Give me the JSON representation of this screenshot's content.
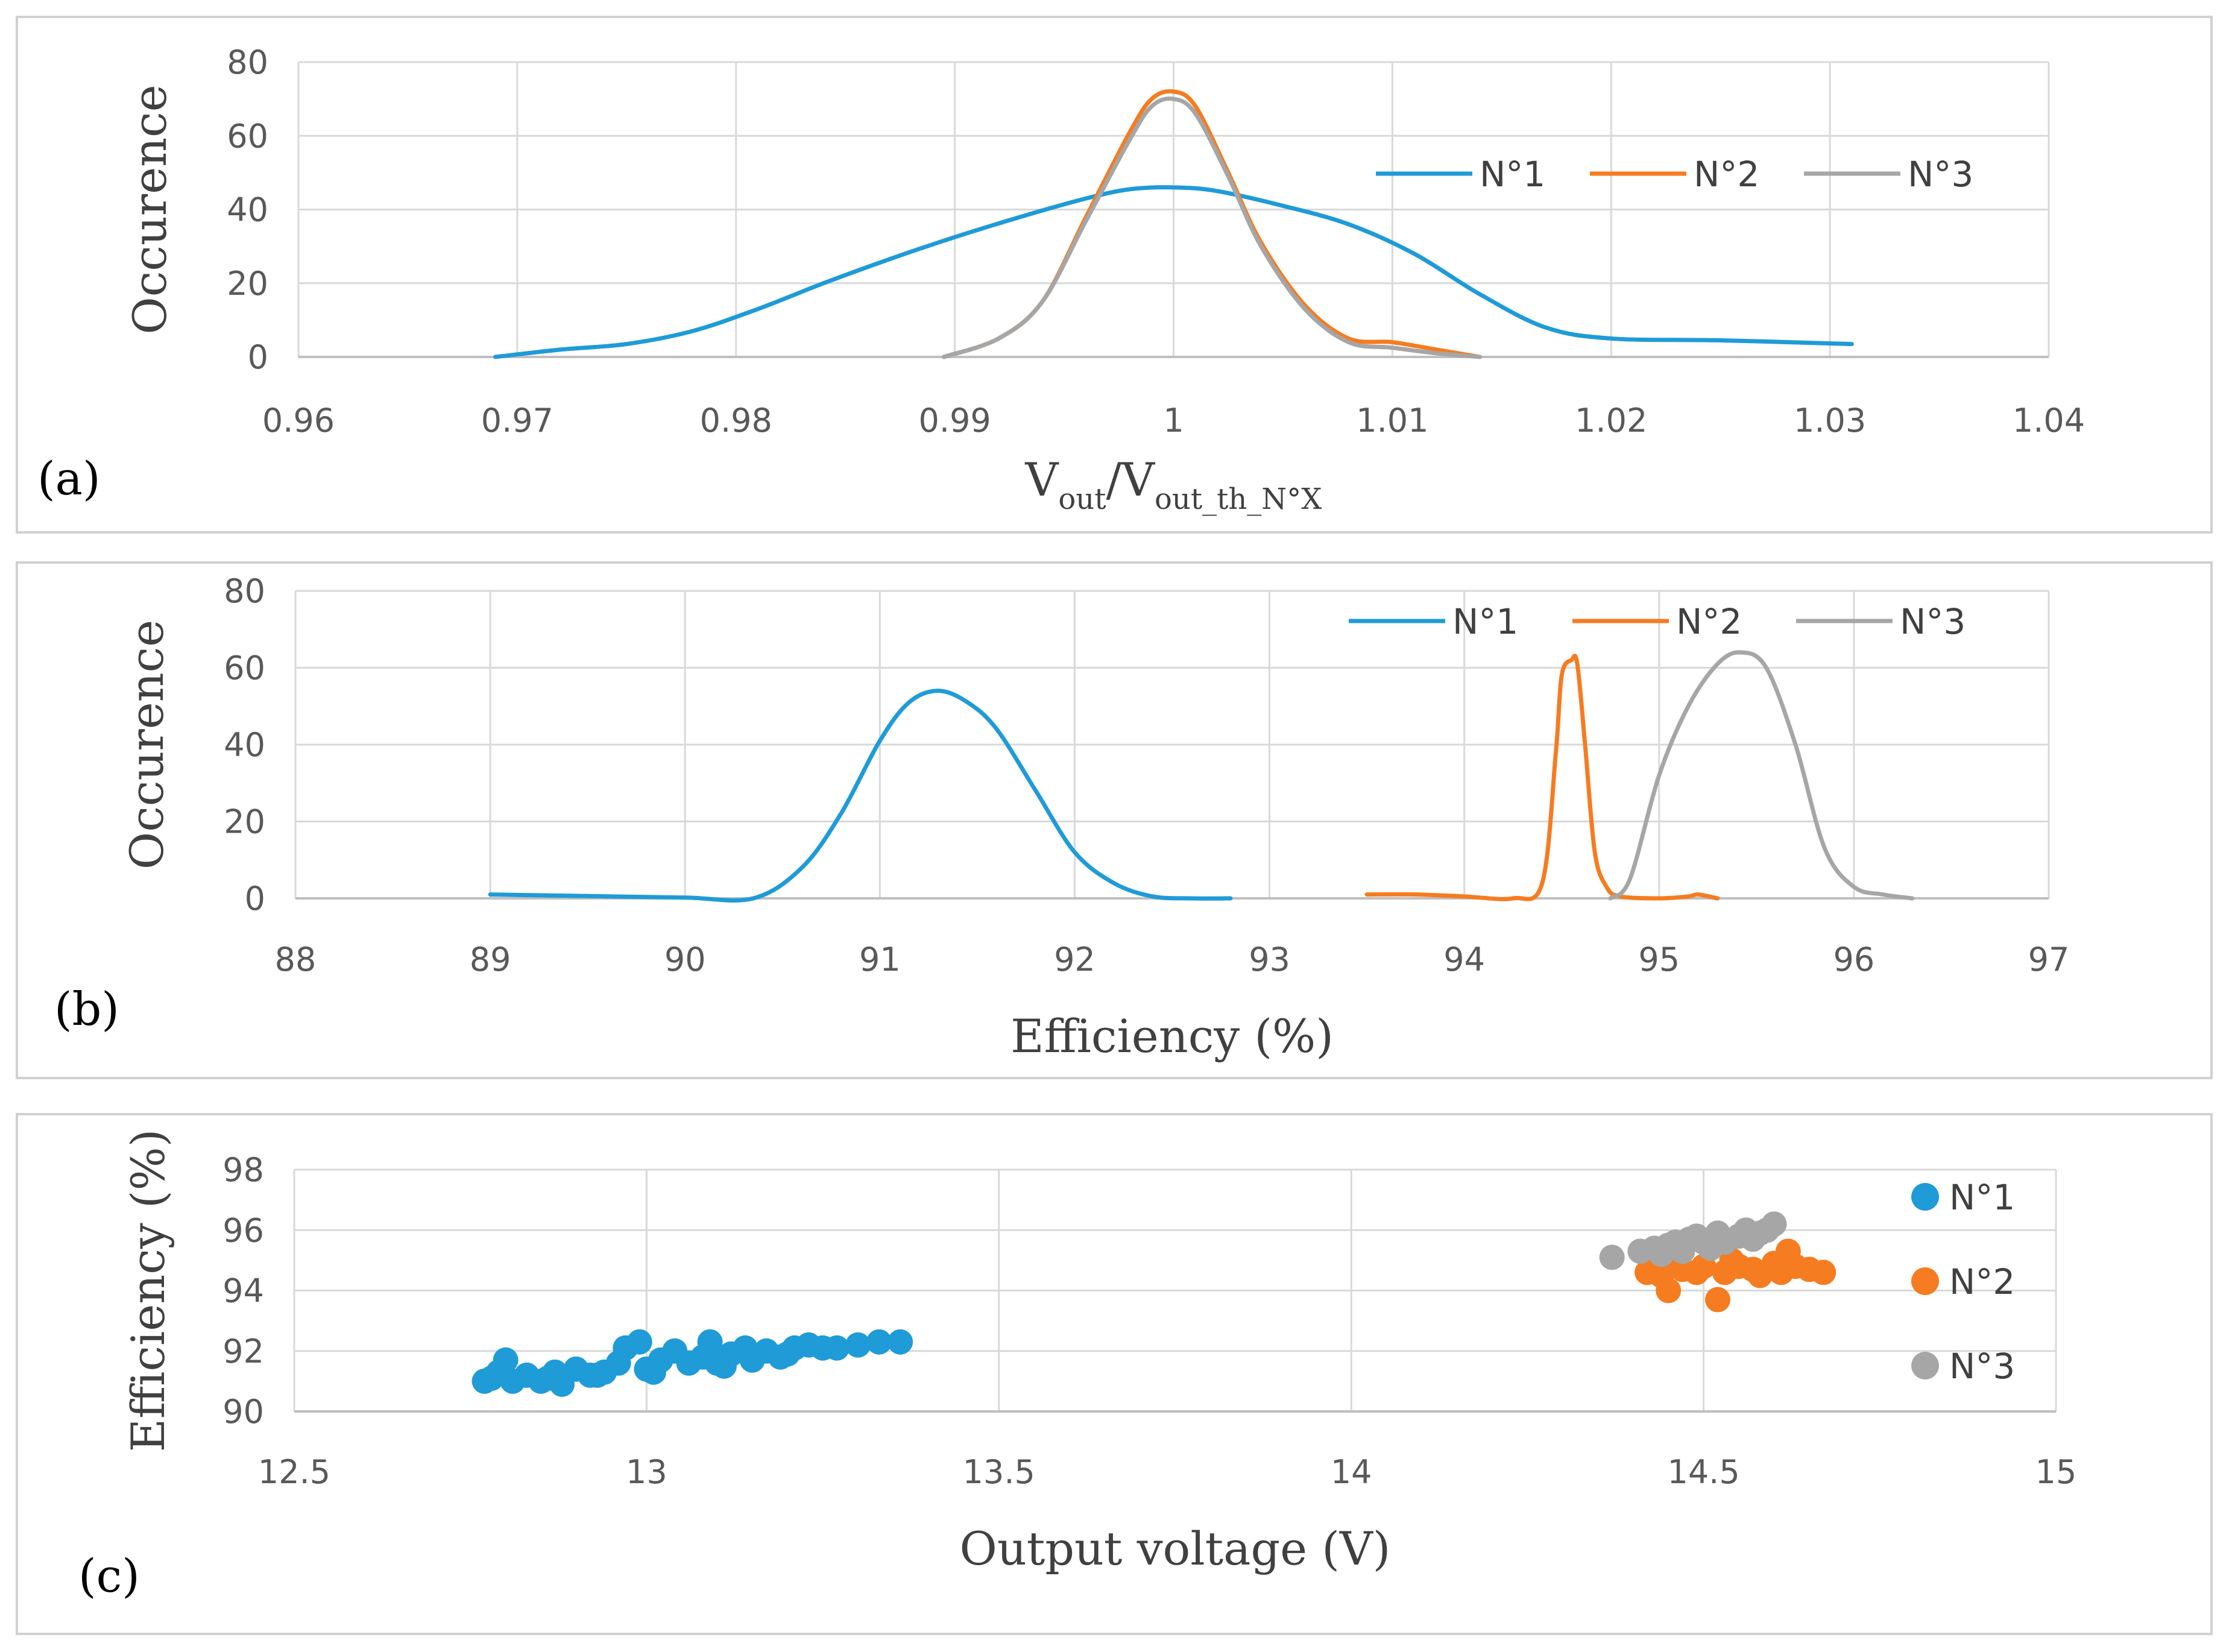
{
  "colors": {
    "n1": "#1f9bd7",
    "n2": "#f57c20",
    "n3": "#a6a6a6",
    "grid": "#d9d9d9",
    "frame": "#d0d0d0"
  },
  "chart_data": [
    {
      "id": "a",
      "type": "line",
      "panel_label": "(a)",
      "xlabel_parts": {
        "v1": "V",
        "sub1": "out",
        "slash": "/V",
        "sub2": "out_th_N°X"
      },
      "ylabel": "Occurence",
      "xlim": [
        0.96,
        1.04
      ],
      "ylim": [
        0,
        80
      ],
      "xticks": [
        0.96,
        0.97,
        0.98,
        0.99,
        1.0,
        1.01,
        1.02,
        1.03,
        1.04
      ],
      "xtick_labels": [
        "0.96",
        "0.97",
        "0.98",
        "0.99",
        "1",
        "1.01",
        "1.02",
        "1.03",
        "1.04"
      ],
      "yticks": [
        0,
        20,
        40,
        60,
        80
      ],
      "ytick_labels": [
        "0",
        "20",
        "40",
        "60",
        "80"
      ],
      "grid": true,
      "legend_position": "top-right",
      "series": [
        {
          "name": "N°1",
          "color_key": "n1",
          "x": [
            0.969,
            0.972,
            0.975,
            0.978,
            0.981,
            0.984,
            0.987,
            0.99,
            0.993,
            0.996,
            0.998,
            1.0,
            1.002,
            1.005,
            1.008,
            1.011,
            1.014,
            1.017,
            1.02,
            1.025,
            1.031
          ],
          "y": [
            0,
            2,
            3.5,
            7,
            13,
            20,
            26.5,
            32.5,
            38,
            43,
            45.5,
            46,
            45,
            41,
            36,
            28,
            17,
            8,
            5,
            4.5,
            3.5
          ]
        },
        {
          "name": "N°2",
          "color_key": "n2",
          "x": [
            0.9895,
            0.992,
            0.994,
            0.996,
            0.998,
            0.999,
            1.0,
            1.001,
            1.0025,
            1.004,
            1.006,
            1.008,
            1.01,
            1.012,
            1.014
          ],
          "y": [
            0,
            5,
            15,
            38,
            61,
            70,
            72,
            68,
            50,
            31,
            14,
            5,
            4,
            2,
            0
          ]
        },
        {
          "name": "N°3",
          "color_key": "n3",
          "x": [
            0.9895,
            0.992,
            0.994,
            0.996,
            0.998,
            0.999,
            1.0,
            1.001,
            1.0025,
            1.004,
            1.006,
            1.008,
            1.01,
            1.012,
            1.014
          ],
          "y": [
            0,
            5,
            15,
            37,
            59,
            68,
            70,
            66,
            49,
            30,
            13,
            4,
            2.5,
            1,
            0
          ]
        }
      ]
    },
    {
      "id": "b",
      "type": "line",
      "panel_label": "(b)",
      "xlabel": "Efficiency (%)",
      "ylabel": "Occurence",
      "xlim": [
        88,
        97
      ],
      "ylim": [
        0,
        80
      ],
      "xticks": [
        88,
        89,
        90,
        91,
        92,
        93,
        94,
        95,
        96,
        97
      ],
      "xtick_labels": [
        "88",
        "89",
        "90",
        "91",
        "92",
        "93",
        "94",
        "95",
        "96",
        "97"
      ],
      "yticks": [
        0,
        20,
        40,
        60,
        80
      ],
      "ytick_labels": [
        "0",
        "20",
        "40",
        "60",
        "80"
      ],
      "grid": true,
      "legend_position": "top-right",
      "series": [
        {
          "name": "N°1",
          "color_key": "n1",
          "x": [
            89.0,
            89.5,
            90.0,
            90.35,
            90.6,
            90.8,
            91.0,
            91.15,
            91.3,
            91.45,
            91.6,
            91.8,
            92.0,
            92.2,
            92.4,
            92.6,
            92.8
          ],
          "y": [
            1,
            0.6,
            0.2,
            0,
            8,
            22,
            41,
            51,
            54,
            51,
            44,
            28,
            12,
            4,
            0.5,
            0,
            0
          ]
        },
        {
          "name": "N°2",
          "color_key": "n2",
          "x": [
            93.5,
            93.75,
            94.0,
            94.25,
            94.4,
            94.47,
            94.5,
            94.55,
            94.58,
            94.62,
            94.67,
            94.73,
            94.8,
            95.0,
            95.15,
            95.2,
            95.3
          ],
          "y": [
            1,
            1,
            0.5,
            0,
            4,
            38,
            58,
            62,
            61,
            40,
            12,
            3,
            0.5,
            0,
            0.5,
            1,
            0
          ]
        },
        {
          "name": "N°3",
          "color_key": "n3",
          "x": [
            94.75,
            94.85,
            95.0,
            95.15,
            95.3,
            95.42,
            95.55,
            95.7,
            95.85,
            96.0,
            96.15,
            96.3
          ],
          "y": [
            0,
            5,
            32,
            50,
            61,
            64,
            60,
            40,
            13,
            3,
            1,
            0
          ]
        }
      ]
    },
    {
      "id": "c",
      "type": "scatter",
      "panel_label": "(c)",
      "xlabel": "Output voltage (V)",
      "ylabel": "Efficiency (%)",
      "xlim": [
        12.5,
        15
      ],
      "ylim": [
        90,
        98
      ],
      "xticks": [
        12.5,
        13,
        13.5,
        14,
        14.5,
        15
      ],
      "xtick_labels": [
        "12.5",
        "13",
        "13.5",
        "14",
        "14.5",
        "15"
      ],
      "yticks": [
        90,
        92,
        94,
        96,
        98
      ],
      "ytick_labels": [
        "90",
        "92",
        "94",
        "96",
        "98"
      ],
      "grid": true,
      "legend_position": "right",
      "series": [
        {
          "name": "N°1",
          "color_key": "n1",
          "x": [
            12.77,
            12.78,
            12.8,
            12.81,
            12.83,
            12.85,
            12.87,
            12.88,
            12.9,
            12.92,
            12.94,
            12.96,
            12.97,
            12.99,
            13.0,
            13.02,
            13.04,
            13.06,
            13.08,
            13.09,
            13.1,
            13.12,
            13.14,
            13.15,
            13.17,
            13.19,
            13.21,
            13.23,
            13.25,
            13.27,
            13.3,
            13.33,
            13.36,
            12.79,
            12.86,
            12.93,
            13.01,
            13.11,
            13.2
          ],
          "y": [
            91.0,
            91.1,
            91.7,
            91.0,
            91.2,
            91.0,
            91.3,
            90.9,
            91.4,
            91.2,
            91.3,
            91.6,
            92.1,
            92.3,
            91.4,
            91.7,
            92.0,
            91.6,
            91.8,
            92.3,
            91.6,
            91.9,
            92.1,
            91.7,
            92.0,
            91.8,
            92.1,
            92.2,
            92.1,
            92.1,
            92.2,
            92.3,
            92.3,
            91.3,
            91.1,
            91.2,
            91.3,
            91.5,
            91.9
          ]
        },
        {
          "name": "N°2",
          "color_key": "n2",
          "x": [
            14.42,
            14.44,
            14.45,
            14.47,
            14.49,
            14.5,
            14.52,
            14.53,
            14.55,
            14.57,
            14.58,
            14.6,
            14.62,
            14.63,
            14.65,
            14.67,
            14.46,
            14.54,
            14.61
          ],
          "y": [
            94.6,
            94.5,
            94.0,
            94.7,
            94.6,
            94.8,
            93.7,
            94.6,
            94.8,
            94.7,
            94.5,
            94.9,
            95.3,
            94.8,
            94.7,
            94.6,
            94.9,
            95.0,
            94.6
          ]
        },
        {
          "name": "N°3",
          "color_key": "n3",
          "x": [
            14.37,
            14.41,
            14.43,
            14.45,
            14.46,
            14.48,
            14.49,
            14.5,
            14.51,
            14.53,
            14.55,
            14.56,
            14.58,
            14.59,
            14.6,
            14.44,
            14.47,
            14.52,
            14.57
          ],
          "y": [
            95.1,
            95.3,
            95.4,
            95.5,
            95.6,
            95.7,
            95.8,
            95.6,
            95.4,
            95.6,
            95.8,
            96.0,
            95.9,
            96.0,
            96.2,
            95.2,
            95.3,
            95.9,
            95.7
          ]
        }
      ]
    }
  ]
}
